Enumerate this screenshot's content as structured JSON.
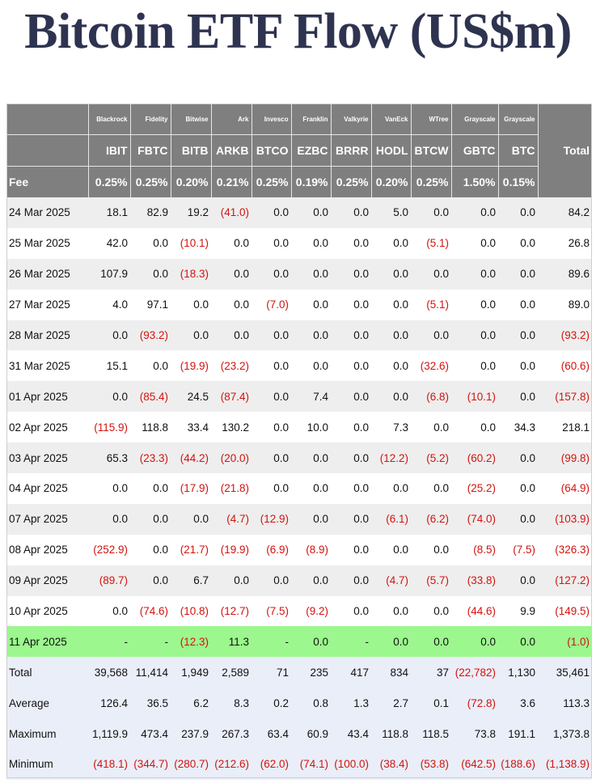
{
  "title": "Bitcoin ETF Flow (US$m)",
  "issuers": [
    "Blackrock",
    "Fidelity",
    "Bitwise",
    "Ark",
    "Invesco",
    "Franklin",
    "Valkyrie",
    "VanEck",
    "WTree",
    "Grayscale",
    "Grayscale"
  ],
  "total_header": "Total",
  "tickers": [
    "IBIT",
    "FBTC",
    "BITB",
    "ARKB",
    "BTCO",
    "EZBC",
    "BRRR",
    "HODL",
    "BTCW",
    "GBTC",
    "BTC"
  ],
  "fee_label": "Fee",
  "fees": [
    "0.25%",
    "0.25%",
    "0.20%",
    "0.21%",
    "0.25%",
    "0.19%",
    "0.25%",
    "0.20%",
    "0.25%",
    "1.50%",
    "0.15%"
  ],
  "rows": [
    {
      "date": "24 Mar 2025",
      "values": [
        "18.1",
        "82.9",
        "19.2",
        "(41.0)",
        "0.0",
        "0.0",
        "0.0",
        "5.0",
        "0.0",
        "0.0",
        "0.0",
        "84.2"
      ]
    },
    {
      "date": "25 Mar 2025",
      "values": [
        "42.0",
        "0.0",
        "(10.1)",
        "0.0",
        "0.0",
        "0.0",
        "0.0",
        "0.0",
        "(5.1)",
        "0.0",
        "0.0",
        "26.8"
      ]
    },
    {
      "date": "26 Mar 2025",
      "values": [
        "107.9",
        "0.0",
        "(18.3)",
        "0.0",
        "0.0",
        "0.0",
        "0.0",
        "0.0",
        "0.0",
        "0.0",
        "0.0",
        "89.6"
      ]
    },
    {
      "date": "27 Mar 2025",
      "values": [
        "4.0",
        "97.1",
        "0.0",
        "0.0",
        "(7.0)",
        "0.0",
        "0.0",
        "0.0",
        "(5.1)",
        "0.0",
        "0.0",
        "89.0"
      ]
    },
    {
      "date": "28 Mar 2025",
      "values": [
        "0.0",
        "(93.2)",
        "0.0",
        "0.0",
        "0.0",
        "0.0",
        "0.0",
        "0.0",
        "0.0",
        "0.0",
        "0.0",
        "(93.2)"
      ]
    },
    {
      "date": "31 Mar 2025",
      "values": [
        "15.1",
        "0.0",
        "(19.9)",
        "(23.2)",
        "0.0",
        "0.0",
        "0.0",
        "0.0",
        "(32.6)",
        "0.0",
        "0.0",
        "(60.6)"
      ]
    },
    {
      "date": "01 Apr 2025",
      "values": [
        "0.0",
        "(85.4)",
        "24.5",
        "(87.4)",
        "0.0",
        "7.4",
        "0.0",
        "0.0",
        "(6.8)",
        "(10.1)",
        "0.0",
        "(157.8)"
      ]
    },
    {
      "date": "02 Apr 2025",
      "values": [
        "(115.9)",
        "118.8",
        "33.4",
        "130.2",
        "0.0",
        "10.0",
        "0.0",
        "7.3",
        "0.0",
        "0.0",
        "34.3",
        "218.1"
      ]
    },
    {
      "date": "03 Apr 2025",
      "values": [
        "65.3",
        "(23.3)",
        "(44.2)",
        "(20.0)",
        "0.0",
        "0.0",
        "0.0",
        "(12.2)",
        "(5.2)",
        "(60.2)",
        "0.0",
        "(99.8)"
      ]
    },
    {
      "date": "04 Apr 2025",
      "values": [
        "0.0",
        "0.0",
        "(17.9)",
        "(21.8)",
        "0.0",
        "0.0",
        "0.0",
        "0.0",
        "0.0",
        "(25.2)",
        "0.0",
        "(64.9)"
      ]
    },
    {
      "date": "07 Apr 2025",
      "values": [
        "0.0",
        "0.0",
        "0.0",
        "(4.7)",
        "(12.9)",
        "0.0",
        "0.0",
        "(6.1)",
        "(6.2)",
        "(74.0)",
        "0.0",
        "(103.9)"
      ]
    },
    {
      "date": "08 Apr 2025",
      "values": [
        "(252.9)",
        "0.0",
        "(21.7)",
        "(19.9)",
        "(6.9)",
        "(8.9)",
        "0.0",
        "0.0",
        "0.0",
        "(8.5)",
        "(7.5)",
        "(326.3)"
      ]
    },
    {
      "date": "09 Apr 2025",
      "values": [
        "(89.7)",
        "0.0",
        "6.7",
        "0.0",
        "0.0",
        "0.0",
        "0.0",
        "(4.7)",
        "(5.7)",
        "(33.8)",
        "0.0",
        "(127.2)"
      ]
    },
    {
      "date": "10 Apr 2025",
      "values": [
        "0.0",
        "(74.6)",
        "(10.8)",
        "(12.7)",
        "(7.5)",
        "(9.2)",
        "0.0",
        "0.0",
        "0.0",
        "(44.6)",
        "9.9",
        "(149.5)"
      ]
    },
    {
      "date": "11 Apr 2025",
      "values": [
        "-",
        "-",
        "(12.3)",
        "11.3",
        "-",
        "0.0",
        "-",
        "0.0",
        "0.0",
        "0.0",
        "0.0",
        "(1.0)"
      ],
      "highlight": true
    }
  ],
  "stats": [
    {
      "label": "Total",
      "values": [
        "39,568",
        "11,414",
        "1,949",
        "2,589",
        "71",
        "235",
        "417",
        "834",
        "37",
        "(22,782)",
        "1,130",
        "35,461"
      ]
    },
    {
      "label": "Average",
      "values": [
        "126.4",
        "36.5",
        "6.2",
        "8.3",
        "0.2",
        "0.8",
        "1.3",
        "2.7",
        "0.1",
        "(72.8)",
        "3.6",
        "113.3"
      ]
    },
    {
      "label": "Maximum",
      "values": [
        "1,119.9",
        "473.4",
        "237.9",
        "267.3",
        "63.4",
        "60.9",
        "43.4",
        "118.8",
        "118.5",
        "73.8",
        "191.1",
        "1,373.8"
      ]
    },
    {
      "label": "Minimum",
      "values": [
        "(418.1)",
        "(344.7)",
        "(280.7)",
        "(212.6)",
        "(62.0)",
        "(74.1)",
        "(100.0)",
        "(38.4)",
        "(53.8)",
        "(642.5)",
        "(188.6)",
        "(1,138.9)"
      ]
    }
  ],
  "colors": {
    "header_bg": "#7f7f7f",
    "negative": "#d2130f",
    "highlight_row": "#9cf78e",
    "stats_bg": "#eaeef8",
    "alt_row": "#eeeeee",
    "title": "#2e3350"
  }
}
